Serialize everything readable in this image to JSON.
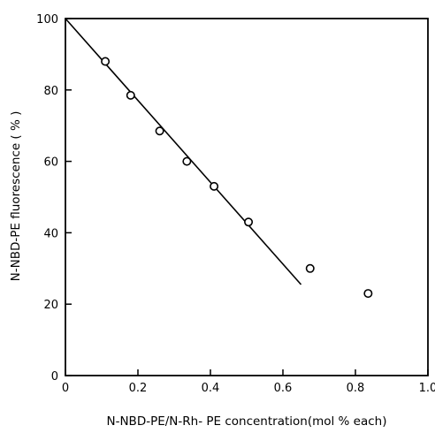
{
  "chart_data": {
    "type": "scatter",
    "xlabel": "N-NBD-PE/N-Rh- PE concentration(mol % each)",
    "ylabel": "N-NBD-PE fluorescence ( % )",
    "xlim": [
      0,
      1.0
    ],
    "ylim": [
      0,
      100
    ],
    "x_ticks": [
      0,
      0.2,
      0.4,
      0.6,
      0.8,
      1.0
    ],
    "x_tick_labels": [
      "0",
      "0.2",
      "0.4",
      "0.6",
      "0.8",
      "1.0"
    ],
    "y_ticks": [
      0,
      20,
      40,
      60,
      80,
      100
    ],
    "y_tick_labels": [
      "0",
      "20",
      "40",
      "60",
      "80",
      "100"
    ],
    "grid": false,
    "legend": "none",
    "series": [
      {
        "marker": "open-circle",
        "points": [
          {
            "x": 0.11,
            "y": 88
          },
          {
            "x": 0.18,
            "y": 78.5
          },
          {
            "x": 0.26,
            "y": 68.5
          },
          {
            "x": 0.335,
            "y": 60
          },
          {
            "x": 0.41,
            "y": 53
          },
          {
            "x": 0.505,
            "y": 43
          },
          {
            "x": 0.675,
            "y": 30
          },
          {
            "x": 0.835,
            "y": 23
          }
        ]
      }
    ],
    "fit_line": {
      "x": [
        0,
        0.65
      ],
      "y": [
        100,
        25.5
      ]
    }
  }
}
